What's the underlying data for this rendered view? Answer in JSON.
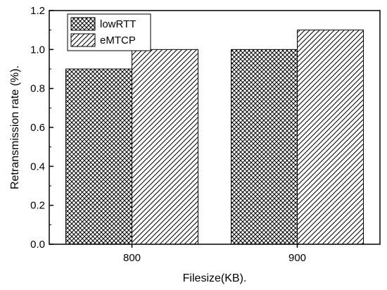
{
  "chart_data": {
    "type": "bar",
    "categories": [
      "800",
      "900"
    ],
    "series": [
      {
        "name": "lowRTT",
        "values": [
          0.9,
          1.0
        ],
        "pattern": "crosshatch"
      },
      {
        "name": "eMTCP",
        "values": [
          1.0,
          1.1
        ],
        "pattern": "diagonal"
      }
    ],
    "xlabel": "Filesize(KB).",
    "ylabel": "Retransmission rate (%).",
    "ylim": [
      0,
      1.2
    ],
    "yticks": [
      "0.0",
      "0.2",
      "0.4",
      "0.6",
      "0.8",
      "1.0",
      "1.2"
    ],
    "grid": false,
    "legend_position": "top-left"
  }
}
